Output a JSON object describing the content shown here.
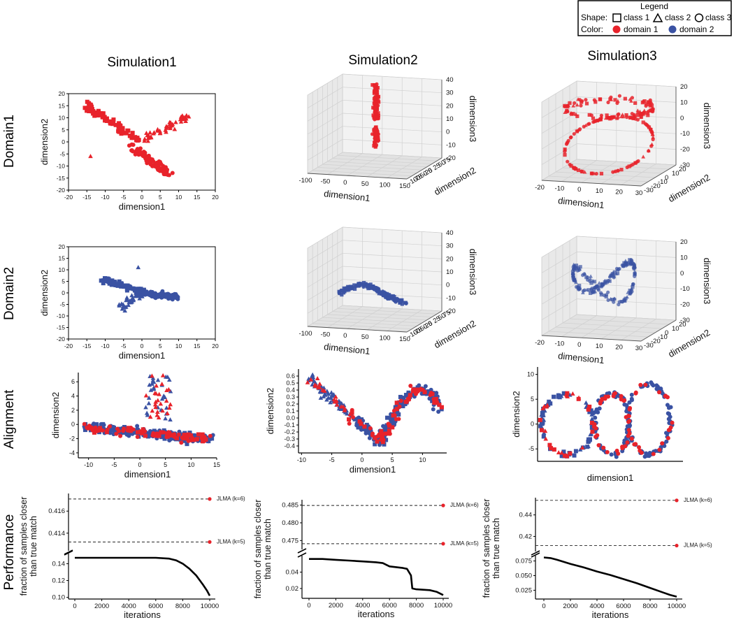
{
  "legend": {
    "title": "Legend",
    "shape_label": "Shape:",
    "color_label": "Color:",
    "classes": [
      "class 1",
      "class 2",
      "class 3"
    ],
    "domains": [
      "domain 1",
      "domain 2"
    ]
  },
  "colors": {
    "domain1": "#e8232b",
    "domain2": "#3a52a3",
    "line": "#000000"
  },
  "columns": [
    "Simulation1",
    "Simulation2",
    "Simulation3"
  ],
  "rows": [
    "Domain1",
    "Domain2",
    "Alignment",
    "Performance"
  ],
  "chart_data": [
    {
      "id": "d1s1",
      "type": "scatter",
      "xlabel": "dimension1",
      "ylabel": "dimension2",
      "xlim": [
        -20,
        20
      ],
      "ylim": [
        -20,
        20
      ],
      "xticks": [
        "-20",
        "-15",
        "-10",
        "-5",
        "0",
        "5",
        "10",
        "15",
        "20"
      ],
      "yticks": [
        "-20",
        "-15",
        "-10",
        "-5",
        "0",
        "5",
        "10",
        "15",
        "20"
      ]
    },
    {
      "id": "d2s1",
      "type": "scatter",
      "xlabel": "dimension1",
      "ylabel": "dimension2",
      "xlim": [
        -20,
        20
      ],
      "ylim": [
        -20,
        20
      ],
      "xticks": [
        "-20",
        "-15",
        "-10",
        "-5",
        "0",
        "5",
        "10",
        "15",
        "20"
      ],
      "yticks": [
        "-20",
        "-15",
        "-10",
        "-5",
        "0",
        "5",
        "10",
        "15",
        "20"
      ]
    },
    {
      "id": "d1s2",
      "type": "scatter3d",
      "xlabel": "dimension1",
      "ylabel": "dimension2",
      "zlabel": "dimension3",
      "xticks": [
        "-100",
        "-50",
        "0",
        "50",
        "100",
        "150"
      ],
      "yticks": [
        "-100",
        "-75",
        "-50",
        "-25",
        "0",
        "25",
        "50",
        "75"
      ],
      "zticks": [
        "-20",
        "-10",
        "0",
        "10",
        "20",
        "30",
        "40"
      ]
    },
    {
      "id": "d2s2",
      "type": "scatter3d",
      "xlabel": "dimension1",
      "ylabel": "dimension2",
      "zlabel": "dimension3",
      "xticks": [
        "-100",
        "-50",
        "0",
        "50",
        "100",
        "150"
      ],
      "yticks": [
        "-100",
        "-75",
        "-50",
        "-25",
        "0",
        "25",
        "50",
        "75"
      ],
      "zticks": [
        "-20",
        "-10",
        "0",
        "10",
        "20",
        "30",
        "40"
      ]
    },
    {
      "id": "d1s3",
      "type": "scatter3d",
      "xlabel": "dimension1",
      "ylabel": "dimension2",
      "zlabel": "dimension3",
      "xticks": [
        "-20",
        "-10",
        "0",
        "10",
        "20",
        "30"
      ],
      "yticks": [
        "-30",
        "-20",
        "-10",
        "0",
        "10",
        "20"
      ],
      "zticks": [
        "-30",
        "-20",
        "-10",
        "0",
        "10",
        "20"
      ]
    },
    {
      "id": "d2s3",
      "type": "scatter3d",
      "xlabel": "dimension1",
      "ylabel": "dimension2",
      "zlabel": "dimension3",
      "xticks": [
        "-20",
        "-10",
        "0",
        "10",
        "20",
        "30"
      ],
      "yticks": [
        "-30",
        "-20",
        "-10",
        "0",
        "10",
        "20"
      ],
      "zticks": [
        "-30",
        "-20",
        "-10",
        "0",
        "10",
        "20"
      ]
    },
    {
      "id": "a1",
      "type": "scatter",
      "xlabel": "dimension1",
      "ylabel": "dimension2",
      "xlim": [
        -12,
        15
      ],
      "ylim": [
        -4.7,
        7.3
      ],
      "xticks": [
        "-10",
        "-5",
        "0",
        "5",
        "10",
        "15"
      ],
      "xtickvals": [
        -10,
        -5,
        0,
        5,
        10,
        15
      ],
      "yticks": [
        "-4",
        "-2",
        "0",
        "2",
        "4",
        "6"
      ],
      "ytickvals": [
        -4,
        -2,
        0,
        2,
        4,
        6
      ]
    },
    {
      "id": "a2",
      "type": "scatter",
      "xlabel": "dimension1",
      "ylabel": "dimension2",
      "xlim": [
        -10.5,
        14
      ],
      "ylim": [
        -0.5,
        0.7
      ],
      "xticks": [
        "-10",
        "-5",
        "0",
        "5",
        "10"
      ],
      "xtickvals": [
        -10,
        -5,
        0,
        5,
        10
      ],
      "yticks": [
        "-0.4",
        "-0.3",
        "-0.2",
        "-0.1",
        "0.0",
        "0.1",
        "0.2",
        "0.3",
        "0.4",
        "0.5",
        "0.6"
      ],
      "ytickvals": [
        -0.4,
        -0.3,
        -0.2,
        -0.1,
        0.0,
        0.1,
        0.2,
        0.3,
        0.4,
        0.5,
        0.6
      ]
    },
    {
      "id": "a3",
      "type": "scatter",
      "xlabel": "dimension1",
      "ylabel": "dimension2",
      "xlim": [
        -12,
        22
      ],
      "ylim": [
        -7.5,
        11.5
      ],
      "yticks": [
        "-5",
        "0",
        "5",
        "10"
      ],
      "ytickvals": [
        -5,
        0,
        5,
        10
      ]
    },
    {
      "id": "p1",
      "type": "line",
      "xlabel": "iterations",
      "ylabel": "fraction of samples closer than true match",
      "x": [
        0,
        1000,
        2000,
        3000,
        4000,
        5000,
        6000,
        7000,
        7500,
        8000,
        8500,
        9000,
        9500,
        9800,
        10000
      ],
      "y": [
        0.147,
        0.147,
        0.147,
        0.147,
        0.147,
        0.147,
        0.147,
        0.146,
        0.144,
        0.14,
        0.134,
        0.126,
        0.115,
        0.108,
        0.102
      ],
      "xticks": [
        "0",
        "2000",
        "4000",
        "6000",
        "8000",
        "10000"
      ],
      "xtickvals": [
        0,
        2000,
        4000,
        6000,
        8000,
        10000
      ],
      "lower_yticks": [
        "0.10",
        "0.12",
        "0.14"
      ],
      "lower_ytickvals": [
        0.1,
        0.12,
        0.14
      ],
      "lower_ylim": [
        0.098,
        0.152
      ],
      "upper_yticks": [
        "0.414",
        "0.416"
      ],
      "upper_ytickvals": [
        0.414,
        0.416
      ],
      "upper_ylim": [
        0.4124,
        0.4176
      ],
      "references": [
        {
          "label": "JLMA (k=6)",
          "value": 0.4171
        },
        {
          "label": "JLMA (k=5)",
          "value": 0.4132
        }
      ]
    },
    {
      "id": "p2",
      "type": "line",
      "xlabel": "iterations",
      "ylabel": "fraction of samples closer than true match",
      "x": [
        0,
        1000,
        2000,
        3000,
        4000,
        5000,
        5500,
        6000,
        6500,
        7000,
        7300,
        7600,
        7700,
        8000,
        9000,
        9500,
        10000
      ],
      "y": [
        0.056,
        0.056,
        0.055,
        0.054,
        0.053,
        0.052,
        0.051,
        0.047,
        0.046,
        0.045,
        0.044,
        0.036,
        0.02,
        0.019,
        0.018,
        0.016,
        0.012
      ],
      "xticks": [
        "0",
        "2000",
        "4000",
        "6000",
        "8000",
        "10000"
      ],
      "xtickvals": [
        0,
        2000,
        4000,
        6000,
        8000,
        10000
      ],
      "lower_yticks": [
        "0.02",
        "0.04"
      ],
      "lower_ytickvals": [
        0.02,
        0.04
      ],
      "lower_ylim": [
        0.008,
        0.06
      ],
      "upper_yticks": [
        "0.475",
        "0.480",
        "0.485"
      ],
      "upper_ytickvals": [
        0.475,
        0.48,
        0.485
      ],
      "upper_ylim": [
        0.4725,
        0.4865
      ],
      "references": [
        {
          "label": "JLMA (k=6)",
          "value": 0.4849
        },
        {
          "label": "JLMA (k=5)",
          "value": 0.4741
        }
      ]
    },
    {
      "id": "p3",
      "type": "line",
      "xlabel": "iterations",
      "ylabel": "fraction of samples closer than true match",
      "x": [
        0,
        500,
        1000,
        2000,
        3000,
        4000,
        5000,
        6000,
        7000,
        8000,
        9000,
        9500,
        10000
      ],
      "y": [
        0.081,
        0.08,
        0.077,
        0.07,
        0.064,
        0.057,
        0.051,
        0.044,
        0.037,
        0.029,
        0.021,
        0.017,
        0.014
      ],
      "xticks": [
        "0",
        "2000",
        "4000",
        "6000",
        "8000",
        "10000"
      ],
      "xtickvals": [
        0,
        2000,
        4000,
        6000,
        8000,
        10000
      ],
      "lower_yticks": [
        "0.025",
        "0.050",
        "0.075"
      ],
      "lower_ytickvals": [
        0.025,
        0.05,
        0.075
      ],
      "lower_ylim": [
        0.01,
        0.084
      ],
      "upper_yticks": [
        "0.42",
        "0.44"
      ],
      "upper_ytickvals": [
        0.42,
        0.44
      ],
      "upper_ylim": [
        0.406,
        0.456
      ],
      "references": [
        {
          "label": "JLMA (k=6)",
          "value": 0.4535
        },
        {
          "label": "JLMA (k=5)",
          "value": 0.4115
        }
      ]
    }
  ]
}
